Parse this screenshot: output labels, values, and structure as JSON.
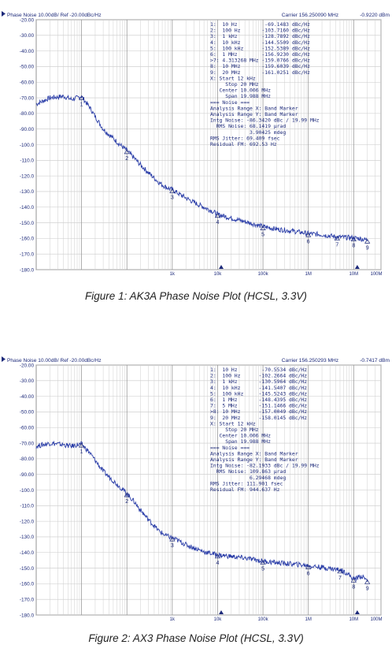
{
  "charts": [
    {
      "header_left": "Phase Noise 10.00dB/ Ref -20.00dBc/Hz",
      "header_carrier": "Carrier 156.250090 MHz",
      "header_level": "-0.9220 dBm",
      "caption": "Figure 1: AK3A Phase Noise Plot (HCSL, 3.3V)",
      "table_lines": [
        "1:  10 Hz         -69.1483 dBc/Hz",
        "2:  100 Hz       -103.7160 dBc/Hz",
        "3:  1 kHz        -128.7892 dBc/Hz",
        "4:  10 kHz       -144.5509 dBc/Hz",
        "5:  100 kHz      -152.5389 dBc/Hz",
        "6:  1 MHz        -156.9230 dBc/Hz",
        ">7: 4.313268 MHz -159.0766 dBc/Hz",
        "8:  10 MHz       -159.6039 dBc/Hz",
        "9:  20 MHz       -161.0251 dBc/Hz",
        "X: Start 12 kHz",
        "     Stop 20 MHz",
        "   Center 10.006 MHz",
        "     Span 19.988 MHz",
        "=== Noise ===",
        "Analysis Range X: Band Marker",
        "Analysis Range Y: Band Marker",
        "Intg Noise: -86.3420 dBc / 19.99 MHz",
        "  RMS Noise: 68.1419 µrad",
        "             3.90425 mdeg",
        "RMS Jitter: 69.409 fsec",
        "Residual FM: 692.53 Hz"
      ]
    },
    {
      "header_left": "Phase Noise 10.00dB/ Ref -20.00dBc/Hz",
      "header_carrier": "Carrier 156.250293 MHz",
      "header_level": "-0.7417 dBm",
      "caption": "Figure 2: AX3 Phase Noise Plot (HCSL, 3.3V)",
      "table_lines": [
        "1:  10 Hz        -70.5534 dBc/Hz",
        "2:  100 Hz      -102.2664 dBc/Hz",
        "3:  1 kHz       -130.5964 dBc/Hz",
        "4:  10 kHz      -141.5407 dBc/Hz",
        "5:  100 kHz     -145.5243 dBc/Hz",
        "6:  1 MHz       -148.4395 dBc/Hz",
        "7:  5 MHz       -151.1466 dBc/Hz",
        ">8: 10 MHz      -157.0049 dBc/Hz",
        "9:  20 MHz      -158.0145 dBc/Hz",
        "X: Start 12 kHz",
        "     Stop 20 MHz",
        "   Center 10.006 MHz",
        "     Span 19.988 MHz",
        "=== Noise ===",
        "Analysis Range X: Band Marker",
        "Analysis Range Y: Band Marker",
        "Intg Noise: -82.1933 dBc / 19.99 MHz",
        "  RMS Noise: 109.863 µrad",
        "             6.29468 mdeg",
        "RMS Jitter: 111.901 fsec",
        "Residual FM: 944.637 Hz"
      ]
    }
  ],
  "chart_data": [
    {
      "type": "line",
      "title": "Phase Noise 10.00dB/ Ref -20.00dBc/Hz",
      "xscale": "log",
      "xlim": [
        1,
        40000000
      ],
      "ylim": [
        -180,
        -20
      ],
      "yticks": [
        -20,
        -30,
        -40,
        -50,
        -60,
        -70,
        -80,
        -90,
        -100,
        -110,
        -120,
        -130,
        -140,
        -150,
        -160,
        -170,
        -180
      ],
      "ytick_labels": [
        "-20.00",
        "-30.00",
        "-40.00",
        "-50.00",
        "-60.00",
        "-70.00",
        "-80.00",
        "-90.00",
        "-100.0",
        "-110.0",
        "-120.0",
        "-130.0",
        "-140.0",
        "-150.0",
        "-160.0",
        "-170.0",
        "-180.0"
      ],
      "xtick_labels": [
        "1k",
        "10k",
        "100k",
        "1M",
        "10M",
        "100M"
      ],
      "grid": true,
      "series": [
        {
          "color": "#2b3ea8",
          "x": [
            1,
            2,
            4,
            6,
            8,
            10,
            15,
            20,
            30,
            50,
            70,
            100,
            150,
            200,
            300,
            500,
            700,
            1000,
            1500,
            2000,
            3000,
            5000,
            7000,
            10000,
            20000,
            50000,
            100000,
            200000,
            500000,
            1000000,
            2000000,
            4313268,
            7000000,
            10000000,
            15000000,
            20000000
          ],
          "y": [
            -74,
            -70,
            -69,
            -71,
            -70,
            -69.1,
            -76,
            -82,
            -90,
            -96,
            -100,
            -103.7,
            -109,
            -113,
            -118,
            -124,
            -127,
            -128.8,
            -132,
            -134,
            -137,
            -140,
            -142,
            -144.6,
            -147,
            -150,
            -152.5,
            -154,
            -155.5,
            -156.9,
            -157.6,
            -159.1,
            -159.4,
            -159.6,
            -160.3,
            -161.0
          ]
        }
      ],
      "markers": [
        {
          "label": "1",
          "x": 10,
          "y": -69.1483
        },
        {
          "label": "2",
          "x": 100,
          "y": -103.716
        },
        {
          "label": "3",
          "x": 1000,
          "y": -128.7892
        },
        {
          "label": "4",
          "x": 10000,
          "y": -144.5509
        },
        {
          "label": "5",
          "x": 100000,
          "y": -152.5389
        },
        {
          "label": "6",
          "x": 1000000,
          "y": -156.923
        },
        {
          "label": "7",
          "x": 4313268,
          "y": -159.0766
        },
        {
          "label": "8",
          "x": 10000000,
          "y": -159.6039
        },
        {
          "label": "9",
          "x": 20000000,
          "y": -161.0251
        }
      ]
    },
    {
      "type": "line",
      "title": "Phase Noise 10.00dB/ Ref -20.00dBc/Hz",
      "xscale": "log",
      "xlim": [
        1,
        40000000
      ],
      "ylim": [
        -180,
        -20
      ],
      "yticks": [
        -20,
        -30,
        -40,
        -50,
        -60,
        -70,
        -80,
        -90,
        -100,
        -110,
        -120,
        -130,
        -140,
        -150,
        -160,
        -170,
        -180
      ],
      "ytick_labels": [
        "-20.00",
        "-30.00",
        "-40.00",
        "-50.00",
        "-60.00",
        "-70.00",
        "-80.00",
        "-90.00",
        "-100.0",
        "-110.0",
        "-120.0",
        "-130.0",
        "-140.0",
        "-150.0",
        "-160.0",
        "-170.0",
        "-180.0"
      ],
      "xtick_labels": [
        "1k",
        "10k",
        "100k",
        "1M",
        "10M",
        "100M"
      ],
      "grid": true,
      "series": [
        {
          "color": "#2b3ea8",
          "x": [
            1,
            2,
            4,
            6,
            8,
            10,
            15,
            20,
            30,
            50,
            70,
            100,
            150,
            200,
            300,
            500,
            700,
            1000,
            1500,
            2000,
            3000,
            5000,
            7000,
            10000,
            20000,
            50000,
            100000,
            200000,
            500000,
            1000000,
            2000000,
            5000000,
            7000000,
            10000000,
            15000000,
            20000000
          ],
          "y": [
            -72,
            -70,
            -71,
            -72,
            -71,
            -70.6,
            -76,
            -81,
            -88,
            -94,
            -98,
            -102.3,
            -108,
            -113,
            -119,
            -126,
            -129,
            -130.6,
            -133,
            -135,
            -137,
            -139.5,
            -140.5,
            -141.5,
            -142.5,
            -144,
            -145.5,
            -146.5,
            -147.5,
            -148.4,
            -149.5,
            -151.1,
            -153,
            -157.0,
            -155,
            -158.0
          ]
        }
      ],
      "markers": [
        {
          "label": "1",
          "x": 10,
          "y": -70.5534
        },
        {
          "label": "2",
          "x": 100,
          "y": -102.2664
        },
        {
          "label": "3",
          "x": 1000,
          "y": -130.5964
        },
        {
          "label": "4",
          "x": 10000,
          "y": -141.5407
        },
        {
          "label": "5",
          "x": 100000,
          "y": -145.5243
        },
        {
          "label": "6",
          "x": 1000000,
          "y": -148.4395
        },
        {
          "label": "7",
          "x": 5000000,
          "y": -151.1466
        },
        {
          "label": "8",
          "x": 10000000,
          "y": -157.0049
        },
        {
          "label": "9",
          "x": 20000000,
          "y": -158.0145
        }
      ]
    }
  ]
}
